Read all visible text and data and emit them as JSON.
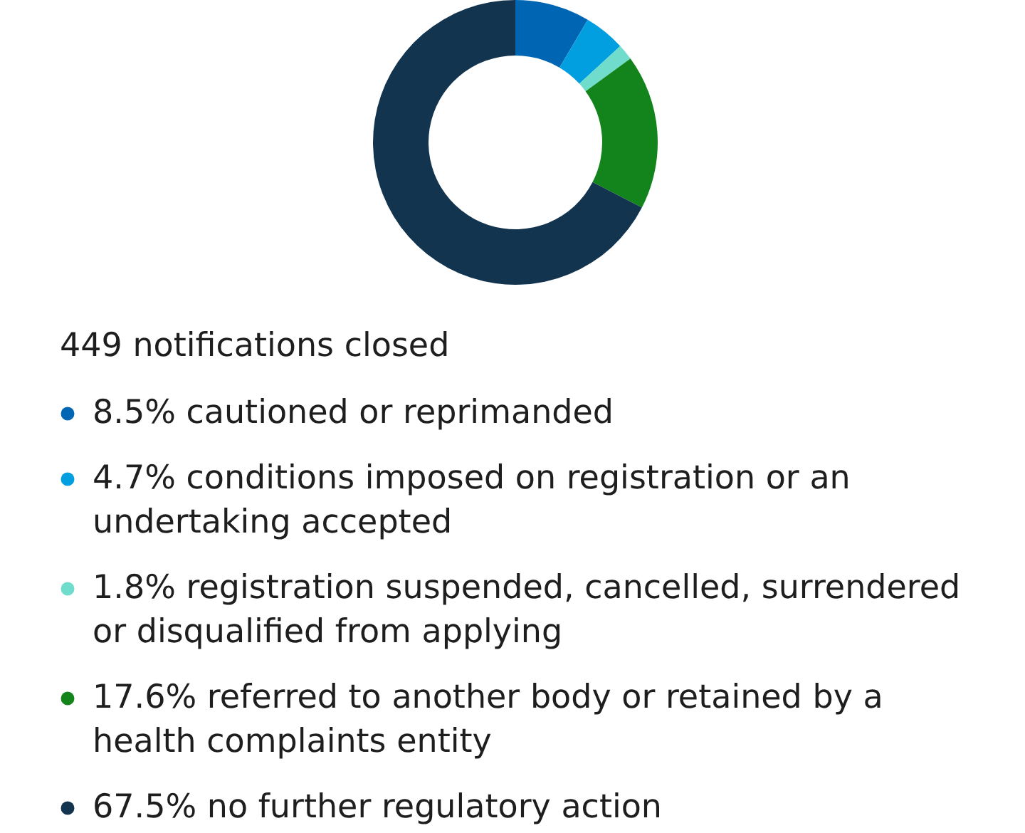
{
  "chart_data": {
    "type": "donut",
    "title": "449 notifications closed",
    "categories": [
      "cautioned or reprimanded",
      "conditions imposed on registration or an undertaking accepted",
      "registration suspended, cancelled, surrendered or disqualified from applying",
      "referred to another body or retained by a health complaints entity",
      "no further regulatory action"
    ],
    "values": [
      8.5,
      4.7,
      1.8,
      17.6,
      67.5
    ],
    "value_labels": [
      "8.5%",
      "4.7%",
      "1.8%",
      "17.6%",
      "67.5%"
    ],
    "colors": [
      "#0066b4",
      "#019ee0",
      "#6fdccc",
      "#13841b",
      "#13344e"
    ],
    "legend": "bottom"
  }
}
